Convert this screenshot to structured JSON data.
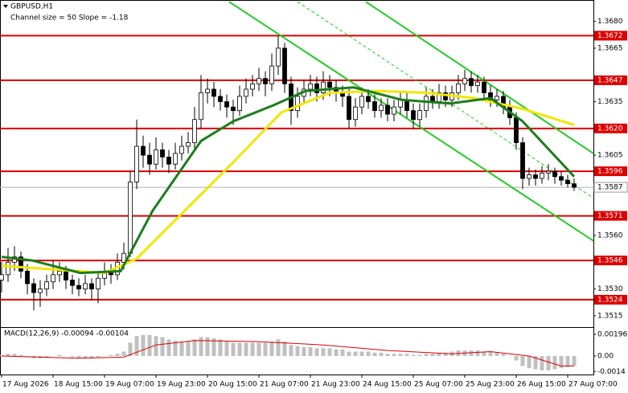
{
  "chart_data": {
    "type": "candlestick",
    "title": "GBPUSD,H1",
    "subtitle": "Channel size = 50 Slope = -1.18",
    "ylim": [
      1.351,
      1.3692
    ],
    "xlim": [
      -0.25,
      92
    ],
    "yticks": [
      {
        "value": 1.368,
        "label": "1.3680"
      },
      1.3665,
      1.3635,
      1.3605,
      {
        "value": 1.356,
        "label": "1.3560"
      },
      {
        "value": 1.353,
        "label": "1.3530"
      },
      1.3515
    ],
    "xticks": [
      {
        "value": 0,
        "label": "17 Aug 2026"
      },
      {
        "value": 8,
        "label": "18 Aug 15:00"
      },
      {
        "value": 16,
        "label": "19 Aug 07:00"
      },
      {
        "value": 24,
        "label": "19 Aug 23:00"
      },
      {
        "value": 32,
        "label": "20 Aug 15:00"
      },
      {
        "value": 40,
        "label": "21 Aug 07:00"
      },
      {
        "value": 48,
        "label": "21 Aug 23:00"
      },
      {
        "value": 56,
        "label": "24 Aug 15:00"
      },
      {
        "value": 64,
        "label": "25 Aug 07:00"
      },
      {
        "value": 72,
        "label": "25 Aug 23:00"
      },
      {
        "value": 80,
        "label": "26 Aug 15:00"
      },
      {
        "value": 88,
        "label": "27 Aug 07:00"
      }
    ],
    "level_color": "#dd0000",
    "levels": [
      1.3672,
      1.3647,
      {
        "value": 1.362,
        "label": "1.3620"
      },
      1.3596,
      1.3571,
      1.3546,
      1.3524
    ],
    "last_price": 1.3587,
    "candles": [
      [
        1.3535,
        1.3545,
        1.3528,
        1.3538
      ],
      [
        1.3538,
        1.3553,
        1.3534,
        1.3545
      ],
      [
        1.3545,
        1.3554,
        1.354,
        1.3548
      ],
      [
        1.3548,
        1.3551,
        1.3536,
        1.354
      ],
      [
        1.354,
        1.3544,
        1.3527,
        1.3533
      ],
      [
        1.3533,
        1.3536,
        1.3518,
        1.3528
      ],
      [
        1.3528,
        1.3535,
        1.352,
        1.353
      ],
      [
        1.353,
        1.3538,
        1.3526,
        1.3534
      ],
      [
        1.3534,
        1.3546,
        1.353,
        1.3538
      ],
      [
        1.3538,
        1.3545,
        1.3534,
        1.354
      ],
      [
        1.354,
        1.3543,
        1.353,
        1.3535
      ],
      [
        1.3535,
        1.3538,
        1.3527,
        1.3532
      ],
      [
        1.3532,
        1.3536,
        1.3526,
        1.353
      ],
      [
        1.353,
        1.3538,
        1.3527,
        1.3533
      ],
      [
        1.3533,
        1.3536,
        1.3524,
        1.353
      ],
      [
        1.353,
        1.354,
        1.3522,
        1.3536
      ],
      [
        1.3536,
        1.3545,
        1.3532,
        1.354
      ],
      [
        1.354,
        1.3544,
        1.3533,
        1.3538
      ],
      [
        1.3538,
        1.355,
        1.3535,
        1.3545
      ],
      [
        1.3545,
        1.3556,
        1.3541,
        1.355
      ],
      [
        1.355,
        1.3596,
        1.3548,
        1.359
      ],
      [
        1.359,
        1.3625,
        1.3586,
        1.361
      ],
      [
        1.361,
        1.3616,
        1.3598,
        1.3605
      ],
      [
        1.3605,
        1.3612,
        1.3594,
        1.36
      ],
      [
        1.36,
        1.3615,
        1.3597,
        1.3608
      ],
      [
        1.3608,
        1.3612,
        1.3598,
        1.3604
      ],
      [
        1.3604,
        1.3608,
        1.3595,
        1.36
      ],
      [
        1.36,
        1.3612,
        1.3597,
        1.3606
      ],
      [
        1.3606,
        1.3616,
        1.3602,
        1.361
      ],
      [
        1.361,
        1.3618,
        1.3606,
        1.3612
      ],
      [
        1.3612,
        1.3632,
        1.3608,
        1.3625
      ],
      [
        1.3625,
        1.365,
        1.362,
        1.364
      ],
      [
        1.364,
        1.3648,
        1.3634,
        1.3642
      ],
      [
        1.3642,
        1.3646,
        1.3632,
        1.3638
      ],
      [
        1.3638,
        1.3642,
        1.363,
        1.3635
      ],
      [
        1.3635,
        1.3639,
        1.3626,
        1.3632
      ],
      [
        1.3632,
        1.3636,
        1.3622,
        1.363
      ],
      [
        1.363,
        1.3644,
        1.3627,
        1.3638
      ],
      [
        1.3638,
        1.3648,
        1.3634,
        1.3642
      ],
      [
        1.3642,
        1.365,
        1.3638,
        1.3645
      ],
      [
        1.3645,
        1.3654,
        1.3641,
        1.3648
      ],
      [
        1.3648,
        1.3652,
        1.3638,
        1.3645
      ],
      [
        1.3645,
        1.3662,
        1.3641,
        1.3655
      ],
      [
        1.3655,
        1.3672,
        1.365,
        1.3665
      ],
      [
        1.3665,
        1.3668,
        1.364,
        1.3645
      ],
      [
        1.3645,
        1.3649,
        1.3622,
        1.363
      ],
      [
        1.363,
        1.3643,
        1.3626,
        1.3638
      ],
      [
        1.3638,
        1.3647,
        1.3634,
        1.3642
      ],
      [
        1.3642,
        1.365,
        1.3638,
        1.3645
      ],
      [
        1.3645,
        1.3649,
        1.3635,
        1.364
      ],
      [
        1.364,
        1.3652,
        1.3636,
        1.3646
      ],
      [
        1.3646,
        1.365,
        1.3638,
        1.3643
      ],
      [
        1.3643,
        1.3647,
        1.3635,
        1.364
      ],
      [
        1.364,
        1.3644,
        1.3632,
        1.3638
      ],
      [
        1.3638,
        1.3642,
        1.362,
        1.3625
      ],
      [
        1.3625,
        1.3637,
        1.3621,
        1.3632
      ],
      [
        1.3632,
        1.3643,
        1.3628,
        1.3638
      ],
      [
        1.3638,
        1.3642,
        1.3631,
        1.3635
      ],
      [
        1.3635,
        1.3639,
        1.3626,
        1.363
      ],
      [
        1.363,
        1.3637,
        1.3626,
        1.3633
      ],
      [
        1.3633,
        1.3637,
        1.3624,
        1.3628
      ],
      [
        1.3628,
        1.3636,
        1.3624,
        1.3632
      ],
      [
        1.3632,
        1.3641,
        1.3628,
        1.3636
      ],
      [
        1.3636,
        1.364,
        1.3626,
        1.363
      ],
      [
        1.363,
        1.3634,
        1.362,
        1.3625
      ],
      [
        1.3625,
        1.3634,
        1.3621,
        1.363
      ],
      [
        1.363,
        1.3643,
        1.3626,
        1.3638
      ],
      [
        1.3638,
        1.3642,
        1.3631,
        1.3635
      ],
      [
        1.3635,
        1.3645,
        1.3631,
        1.364
      ],
      [
        1.364,
        1.3644,
        1.3632,
        1.3636
      ],
      [
        1.3636,
        1.3644,
        1.3632,
        1.364
      ],
      [
        1.364,
        1.365,
        1.3636,
        1.3645
      ],
      [
        1.3645,
        1.3653,
        1.3641,
        1.3648
      ],
      [
        1.3648,
        1.3652,
        1.364,
        1.3644
      ],
      [
        1.3644,
        1.365,
        1.364,
        1.3646
      ],
      [
        1.3646,
        1.3649,
        1.3636,
        1.364
      ],
      [
        1.364,
        1.3644,
        1.3632,
        1.3636
      ],
      [
        1.3636,
        1.3642,
        1.3632,
        1.3638
      ],
      [
        1.3638,
        1.3641,
        1.3628,
        1.3632
      ],
      [
        1.3632,
        1.3636,
        1.3622,
        1.3626
      ],
      [
        1.3626,
        1.3629,
        1.3608,
        1.3612
      ],
      [
        1.3612,
        1.3615,
        1.3586,
        1.3592
      ],
      [
        1.3592,
        1.3598,
        1.3588,
        1.3594
      ],
      [
        1.3594,
        1.3597,
        1.3588,
        1.3592
      ],
      [
        1.3592,
        1.3599,
        1.3589,
        1.3595
      ],
      [
        1.3595,
        1.36,
        1.3591,
        1.3596
      ],
      [
        1.3596,
        1.3598,
        1.3589,
        1.3593
      ],
      [
        1.3593,
        1.3596,
        1.3588,
        1.3591
      ],
      [
        1.3591,
        1.3594,
        1.3587,
        1.3589
      ],
      [
        1.3589,
        1.3592,
        1.3585,
        1.3587
      ]
    ],
    "series": [
      {
        "color": "#f2e600",
        "x": [
          0,
          16,
          21,
          28.5,
          36,
          43.5,
          51,
          58.5,
          66,
          73.5,
          81,
          89
        ],
        "values": [
          1.3543,
          1.3539,
          1.3547,
          1.3574,
          1.3601,
          1.3629,
          1.364,
          1.3641,
          1.364,
          1.3637,
          1.3631,
          1.3622
        ]
      },
      {
        "color": "#1b7d1b",
        "x": [
          0,
          4.75,
          12.25,
          18.5,
          23.5,
          31,
          36,
          42.25,
          47.25,
          54.75,
          62.25,
          69.75,
          76,
          81,
          89
        ],
        "values": [
          1.3548,
          1.3546,
          1.3539,
          1.354,
          1.3574,
          1.3613,
          1.3624,
          1.3633,
          1.3641,
          1.3643,
          1.3636,
          1.3634,
          1.3637,
          1.3624,
          1.3593
        ]
      }
    ],
    "trendlines": [
      {
        "color": "#22cc22",
        "x": [
          35.375,
          92
        ],
        "values": [
          1.3691,
          1.3557
        ]
      },
      {
        "color": "#22cc22",
        "x": [
          56.625,
          92
        ],
        "values": [
          1.3691,
          1.3606
        ]
      },
      {
        "color": "#22cc22",
        "dashed": true,
        "x": [
          46,
          92
        ],
        "values": [
          1.3691,
          1.3581
        ]
      }
    ],
    "macd": {
      "label": "MACD(12,26,9) -0.00094 -0.00104",
      "ylim": [
        -0.00167,
        0.00254
      ],
      "yticks": [
        0.00196,
        {
          "value": 0,
          "label": "0.00"
        },
        -0.0014
      ],
      "color": "#c0c0c0",
      "histogram": [
        0.0001,
        0.0002,
        0.0002,
        0.0001,
        -0.0001,
        -0.0002,
        -0.0002,
        -0.0001,
        0,
        0.0001,
        0,
        -0.0001,
        -0.0002,
        -0.0002,
        -0.0002,
        -0.0001,
        0,
        0.0001,
        0.0002,
        0.0004,
        0.0012,
        0.0018,
        0.0019,
        0.0019,
        0.0018,
        0.0017,
        0.0015,
        0.0014,
        0.0013,
        0.0013,
        0.0015,
        0.0017,
        0.0017,
        0.0016,
        0.0015,
        0.0013,
        0.0012,
        0.0012,
        0.0012,
        0.0012,
        0.0012,
        0.0012,
        0.0013,
        0.0015,
        0.0013,
        0.001,
        0.0009,
        0.0008,
        0.0008,
        0.0007,
        0.0007,
        0.0007,
        0.0006,
        0.0006,
        0.0004,
        0.0004,
        0.0004,
        0.0004,
        0.0003,
        0.0003,
        0.0002,
        0.0002,
        0.0002,
        0.0002,
        0.0001,
        0.0001,
        0.0002,
        0.0002,
        0.0003,
        0.0003,
        0.0004,
        0.0005,
        0.0005,
        0.0005,
        0.0005,
        0.0004,
        0.0004,
        0.0003,
        0.0002,
        0,
        -0.0004,
        -0.0009,
        -0.0011,
        -0.0012,
        -0.0013,
        -0.0013,
        -0.0012,
        -0.0011,
        -0.001,
        -0.0009
      ],
      "signal": {
        "color": "#dd0000",
        "x": [
          0,
          12,
          19,
          24,
          30,
          40,
          50,
          60,
          70,
          76,
          82,
          87,
          89
        ],
        "values": [
          0,
          -0.0002,
          -0.0001,
          0.001,
          0.0014,
          0.0013,
          0.001,
          0.0005,
          0.0002,
          0.0004,
          0,
          -0.0009,
          -0.0009
        ]
      }
    }
  }
}
